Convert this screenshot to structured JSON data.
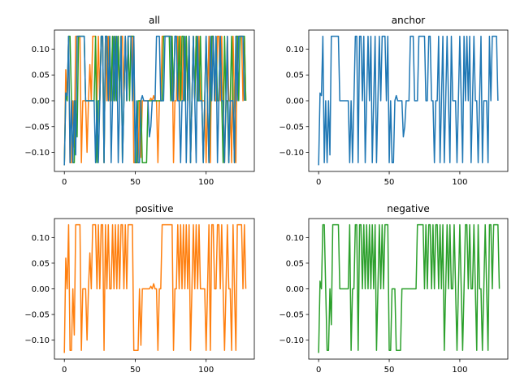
{
  "chart_data": [
    {
      "type": "line",
      "title": "all",
      "xlim": [
        -7,
        134
      ],
      "ylim": [
        -0.137,
        0.137
      ],
      "xticks": [
        0,
        50,
        100
      ],
      "yticks": [
        -0.1,
        -0.05,
        0.0,
        0.05,
        0.1
      ],
      "series": [
        {
          "key": "positive",
          "color": "#ff7f0e",
          "values": [
            -0.125,
            0.06,
            0,
            0.125,
            -0.12,
            -0.12,
            0,
            -0.09,
            0.125,
            0.125,
            0.125,
            0.125,
            -0.12,
            0,
            0,
            0,
            -0.1,
            0,
            0.07,
            0,
            0.125,
            0.125,
            0.125,
            0,
            0.125,
            0,
            0.125,
            0.125,
            -0.12,
            0.125,
            0,
            0.125,
            0,
            0,
            0.125,
            0,
            0.125,
            0,
            0.125,
            0,
            0.125,
            0.125,
            0,
            0.125,
            0,
            0.125,
            0.125,
            0.125,
            0.125,
            -0.12,
            -0.12,
            -0.12,
            -0.12,
            0,
            -0.11,
            0,
            0,
            0,
            0,
            0,
            0,
            0.005,
            0,
            0.01,
            0,
            0,
            -0.12,
            0,
            0,
            0.125,
            0.125,
            0.125,
            0.125,
            0.125,
            0.125,
            0.125,
            0.125,
            -0.12,
            0,
            0,
            0.125,
            0,
            0.125,
            0,
            0.125,
            0,
            0.125,
            0,
            0.125,
            -0.12,
            0,
            0.125,
            0,
            0.125,
            0,
            0.125,
            0,
            0,
            0,
            0,
            -0.12,
            0,
            0.125,
            -0.12,
            0.125,
            0.125,
            0,
            0,
            0.125,
            0.125,
            0,
            0.125,
            0,
            -0.12,
            0,
            0.125,
            0,
            0,
            -0.12,
            0.125,
            0,
            -0.12,
            0.125,
            0.125,
            0.125,
            0.125,
            0,
            0.125,
            0
          ]
        },
        {
          "key": "negative",
          "color": "#2ca02c",
          "values": [
            -0.125,
            0.015,
            0,
            0.125,
            0.125,
            0,
            -0.12,
            -0.12,
            0,
            -0.07,
            0.125,
            0.125,
            0.125,
            0.125,
            0.125,
            0,
            0,
            0,
            0,
            0,
            0,
            0,
            0.125,
            -0.12,
            0,
            0,
            0.125,
            0.125,
            -0.12,
            0.125,
            0.125,
            0,
            0.125,
            0,
            0.125,
            0,
            0.125,
            0,
            0.125,
            0,
            0.125,
            -0.12,
            0,
            0.125,
            0,
            0.125,
            0,
            0.125,
            0.125,
            0.125,
            -0.12,
            -0.12,
            0,
            0,
            0,
            -0.12,
            -0.12,
            -0.12,
            -0.12,
            0,
            0,
            0,
            0,
            0,
            0,
            0,
            0,
            0,
            0,
            0,
            0.125,
            0.125,
            0.125,
            0.125,
            0.125,
            0,
            0.125,
            0,
            0.125,
            0.125,
            0,
            0.125,
            0,
            0.125,
            0.125,
            0,
            0.125,
            0,
            0.125,
            -0.12,
            0,
            0.125,
            0,
            0.125,
            0,
            0,
            0.125,
            0,
            -0.12,
            0,
            0.125,
            0,
            -0.12,
            0,
            0.125,
            0.125,
            0,
            0.125,
            0,
            0,
            0.125,
            0,
            -0.12,
            0.125,
            0,
            0,
            -0.12,
            0,
            0.125,
            0,
            -0.12,
            0.125,
            0.125,
            0,
            0.125,
            0.125,
            0.125,
            0.125,
            0
          ]
        },
        {
          "key": "anchor",
          "color": "#1f77b4",
          "values": [
            -0.125,
            0.015,
            0.01,
            0.125,
            -0.12,
            0,
            -0.12,
            0,
            -0.105,
            0.125,
            0.125,
            0.125,
            0.125,
            0.125,
            0.125,
            0,
            0,
            0,
            0,
            0,
            0,
            0,
            -0.12,
            0,
            -0.12,
            0,
            0.125,
            0.125,
            -0.12,
            0.125,
            0.125,
            0,
            0.125,
            -0.12,
            0,
            0.125,
            0,
            0.125,
            -0.12,
            0,
            0.125,
            -0.12,
            0,
            0.125,
            0,
            0.125,
            0.125,
            0.125,
            0,
            0.125,
            -0.12,
            0,
            -0.12,
            -0.12,
            0,
            0.01,
            0,
            0,
            0,
            0,
            -0.07,
            -0.05,
            0,
            0,
            0,
            0.125,
            0.125,
            0.125,
            0,
            0,
            0,
            0.125,
            0.125,
            0.125,
            0.125,
            0.125,
            0,
            0,
            0.125,
            0.125,
            0,
            0,
            -0.12,
            0,
            0,
            0.125,
            -0.12,
            0,
            0.125,
            -0.12,
            0,
            0.125,
            0,
            -0.12,
            0.125,
            0,
            0,
            0,
            -0.12,
            0,
            0.125,
            0,
            -0.12,
            0.125,
            0,
            0.125,
            0,
            0.125,
            -0.12,
            0,
            0.125,
            0,
            0,
            -0.12,
            0,
            0.125,
            -0.12,
            0,
            0,
            0,
            -0.12,
            0.125,
            0,
            0.125,
            0.125,
            0.125,
            0.125,
            0
          ]
        }
      ]
    },
    {
      "type": "line",
      "title": "anchor",
      "xlim": [
        -7,
        134
      ],
      "ylim": [
        -0.137,
        0.137
      ],
      "xticks": [
        0,
        50,
        100
      ],
      "yticks": [
        -0.1,
        -0.05,
        0.0,
        0.05,
        0.1
      ],
      "series": [
        {
          "key": "anchor",
          "color": "#1f77b4",
          "values": [
            -0.125,
            0.015,
            0.01,
            0.125,
            -0.12,
            0,
            -0.12,
            0,
            -0.105,
            0.125,
            0.125,
            0.125,
            0.125,
            0.125,
            0.125,
            0,
            0,
            0,
            0,
            0,
            0,
            0,
            -0.12,
            0,
            -0.12,
            0,
            0.125,
            0.125,
            -0.12,
            0.125,
            0.125,
            0,
            0.125,
            -0.12,
            0,
            0.125,
            0,
            0.125,
            -0.12,
            0,
            0.125,
            -0.12,
            0,
            0.125,
            0,
            0.125,
            0.125,
            0.125,
            0,
            0.125,
            -0.12,
            0,
            -0.12,
            -0.12,
            0,
            0.01,
            0,
            0,
            0,
            0,
            -0.07,
            -0.05,
            0,
            0,
            0,
            0.125,
            0.125,
            0.125,
            0,
            0,
            0,
            0.125,
            0.125,
            0.125,
            0.125,
            0.125,
            0,
            0,
            0.125,
            0.125,
            0,
            0,
            -0.12,
            0,
            0,
            0.125,
            -0.12,
            0,
            0.125,
            -0.12,
            0,
            0.125,
            0,
            -0.12,
            0.125,
            0,
            0,
            0,
            -0.12,
            0,
            0.125,
            0,
            -0.12,
            0.125,
            0,
            0.125,
            0,
            0.125,
            -0.12,
            0,
            0.125,
            0,
            0,
            -0.12,
            0,
            0.125,
            -0.12,
            0,
            0,
            0,
            -0.12,
            0.125,
            0,
            0.125,
            0.125,
            0.125,
            0.125,
            0
          ]
        }
      ]
    },
    {
      "type": "line",
      "title": "positive",
      "xlim": [
        -7,
        134
      ],
      "ylim": [
        -0.137,
        0.137
      ],
      "xticks": [
        0,
        50,
        100
      ],
      "yticks": [
        -0.1,
        -0.05,
        0.0,
        0.05,
        0.1
      ],
      "series": [
        {
          "key": "positive",
          "color": "#ff7f0e",
          "values": [
            -0.125,
            0.06,
            0,
            0.125,
            -0.12,
            -0.12,
            0,
            -0.09,
            0.125,
            0.125,
            0.125,
            0.125,
            -0.12,
            0,
            0,
            0,
            -0.1,
            0,
            0.07,
            0,
            0.125,
            0.125,
            0.125,
            0,
            0.125,
            0,
            0.125,
            0.125,
            -0.12,
            0.125,
            0,
            0.125,
            0,
            0,
            0.125,
            0,
            0.125,
            0,
            0.125,
            0,
            0.125,
            0.125,
            0,
            0.125,
            0,
            0.125,
            0.125,
            0.125,
            0.125,
            -0.12,
            -0.12,
            -0.12,
            -0.12,
            0,
            -0.11,
            0,
            0,
            0,
            0,
            0,
            0,
            0.005,
            0,
            0.01,
            0,
            0,
            -0.12,
            0,
            0,
            0.125,
            0.125,
            0.125,
            0.125,
            0.125,
            0.125,
            0.125,
            0.125,
            -0.12,
            0,
            0,
            0.125,
            0,
            0.125,
            0,
            0.125,
            0,
            0.125,
            0,
            0.125,
            -0.12,
            0,
            0.125,
            0,
            0.125,
            0,
            0.125,
            0,
            0,
            0,
            0,
            -0.12,
            0,
            0.125,
            -0.12,
            0.125,
            0.125,
            0,
            0,
            0.125,
            0.125,
            0,
            0.125,
            0,
            -0.12,
            0,
            0.125,
            0,
            0,
            -0.12,
            0.125,
            0,
            -0.12,
            0.125,
            0.125,
            0.125,
            0.125,
            0,
            0.125,
            0
          ]
        }
      ]
    },
    {
      "type": "line",
      "title": "negative",
      "xlim": [
        -7,
        134
      ],
      "ylim": [
        -0.137,
        0.137
      ],
      "xticks": [
        0,
        50,
        100
      ],
      "yticks": [
        -0.1,
        -0.05,
        0.0,
        0.05,
        0.1
      ],
      "series": [
        {
          "key": "negative",
          "color": "#2ca02c",
          "values": [
            -0.125,
            0.015,
            0,
            0.125,
            0.125,
            0,
            -0.12,
            -0.12,
            0,
            -0.07,
            0.125,
            0.125,
            0.125,
            0.125,
            0.125,
            0,
            0,
            0,
            0,
            0,
            0,
            0,
            0.125,
            -0.12,
            0,
            0,
            0.125,
            0.125,
            -0.12,
            0.125,
            0.125,
            0,
            0.125,
            0,
            0.125,
            0,
            0.125,
            0,
            0.125,
            0,
            0.125,
            -0.12,
            0,
            0.125,
            0,
            0.125,
            0,
            0.125,
            0.125,
            0.125,
            -0.12,
            -0.12,
            0,
            0,
            0,
            -0.12,
            -0.12,
            -0.12,
            -0.12,
            0,
            0,
            0,
            0,
            0,
            0,
            0,
            0,
            0,
            0,
            0,
            0.125,
            0.125,
            0.125,
            0.125,
            0.125,
            0,
            0.125,
            0,
            0.125,
            0.125,
            0,
            0.125,
            0,
            0.125,
            0.125,
            0,
            0.125,
            0,
            0.125,
            -0.12,
            0,
            0.125,
            0,
            0.125,
            0,
            0,
            0.125,
            0,
            -0.12,
            0,
            0.125,
            0,
            -0.12,
            0,
            0.125,
            0.125,
            0,
            0.125,
            0,
            0,
            0.125,
            0,
            -0.12,
            0.125,
            0,
            0,
            -0.12,
            0,
            0.125,
            0,
            -0.12,
            0.125,
            0.125,
            0,
            0.125,
            0.125,
            0.125,
            0.125,
            0
          ]
        }
      ]
    }
  ]
}
